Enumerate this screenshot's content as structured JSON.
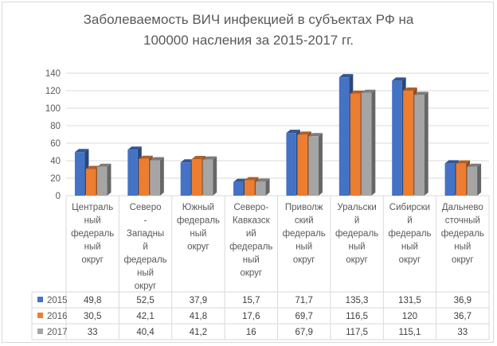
{
  "chart_data": {
    "type": "bar",
    "title_lines": [
      "Заболеваемость ВИЧ инфекцией в субъектах РФ на",
      "100000 насления за 2015-2017 гг."
    ],
    "categories": [
      [
        "Централь",
        "ный",
        "федераль",
        "ный",
        "округ"
      ],
      [
        "Северо",
        "-",
        "Западны",
        "й",
        "федераль",
        "ный",
        "округ"
      ],
      [
        "Южный",
        "федераль",
        "ный",
        "округ"
      ],
      [
        "Северо-",
        "Кавказск",
        "ий",
        "федераль",
        "ный",
        "округ"
      ],
      [
        "Приволж",
        "ский",
        "федераль",
        "ный",
        "округ"
      ],
      [
        "Уральски",
        "й",
        "федераль",
        "ный",
        "округ"
      ],
      [
        "Сибирски",
        "й",
        "федераль",
        "ный",
        "округ"
      ],
      [
        "Дальнево",
        "сточный",
        "федераль",
        "ный",
        "округ"
      ]
    ],
    "series": [
      {
        "name": "2015",
        "color": "#4472c4",
        "values": [
          49.8,
          52.5,
          37.9,
          15.7,
          71.7,
          135.3,
          131.5,
          36.9
        ],
        "labels": [
          "49,8",
          "52,5",
          "37,9",
          "15,7",
          "71,7",
          "135,3",
          "131,5",
          "36,9"
        ]
      },
      {
        "name": "2016",
        "color": "#ed7d31",
        "values": [
          30.5,
          42.1,
          41.8,
          17.6,
          69.7,
          116.5,
          120,
          36.7
        ],
        "labels": [
          "30,5",
          "42,1",
          "41,8",
          "17,6",
          "69,7",
          "116,5",
          "120",
          "36,7"
        ]
      },
      {
        "name": "2017",
        "color": "#a5a5a5",
        "values": [
          33,
          40.4,
          41.2,
          16,
          67.9,
          117.5,
          115.1,
          33
        ],
        "labels": [
          "33",
          "40,4",
          "41,2",
          "16",
          "67,9",
          "117,5",
          "115,1",
          "33"
        ]
      }
    ],
    "y_ticks": [
      "0",
      "20",
      "40",
      "60",
      "80",
      "100",
      "120",
      "140"
    ],
    "ylim": [
      0,
      140
    ],
    "grid": true,
    "data_table": true
  }
}
